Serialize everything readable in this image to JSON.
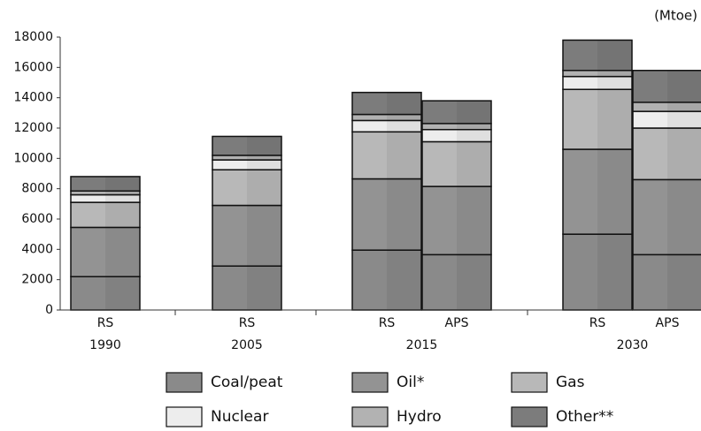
{
  "chart_data": {
    "type": "stacked-bar",
    "unit": "(Mtoe)",
    "groups": [
      {
        "name": "1990",
        "categories": [
          "RS"
        ]
      },
      {
        "name": "2005",
        "categories": [
          "RS"
        ]
      },
      {
        "name": "2015",
        "categories": [
          "RS",
          "APS"
        ]
      },
      {
        "name": "2030",
        "categories": [
          "RS",
          "APS"
        ]
      }
    ],
    "series": [
      {
        "name": "Coal/peat",
        "color": "#8a8a8a",
        "values": [
          2200,
          2900,
          3950,
          3650,
          5000,
          3650
        ]
      },
      {
        "name": "Oil*",
        "color": "#939393",
        "values": [
          3250,
          4000,
          4700,
          4500,
          5600,
          4950
        ]
      },
      {
        "name": "Gas",
        "color": "#b8b8b8",
        "values": [
          1650,
          2350,
          3100,
          2950,
          3950,
          3400
        ]
      },
      {
        "name": "Nuclear",
        "color": "#ededed",
        "values": [
          500,
          650,
          750,
          800,
          850,
          1100
        ]
      },
      {
        "name": "Hydro",
        "color": "#b2b2b2",
        "values": [
          250,
          300,
          400,
          400,
          400,
          600
        ]
      },
      {
        "name": "Other**",
        "color": "#7c7c7c",
        "values": [
          950,
          1250,
          1450,
          1500,
          2000,
          2100
        ]
      }
    ],
    "ylim": [
      0,
      18000
    ],
    "yticks": [
      0,
      2000,
      4000,
      6000,
      8000,
      10000,
      12000,
      14000,
      16000,
      18000
    ],
    "grid": false
  }
}
